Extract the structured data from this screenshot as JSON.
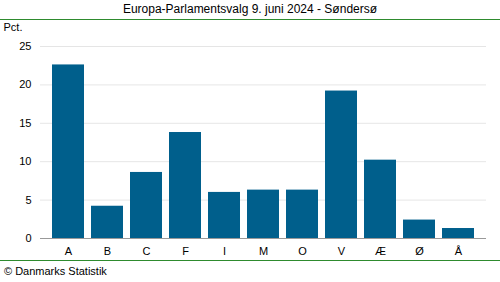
{
  "chart_data": {
    "type": "bar",
    "title": "Europa-Parlamentsvalg 9. juni 2024 - Søndersø",
    "y_label": "Pct.",
    "caption": "© Danmarks Statistik",
    "categories": [
      "A",
      "B",
      "C",
      "F",
      "I",
      "M",
      "O",
      "V",
      "Æ",
      "Ø",
      "Å"
    ],
    "values": [
      22.6,
      4.2,
      8.6,
      13.8,
      6.0,
      6.3,
      6.3,
      19.2,
      10.2,
      2.4,
      1.3
    ],
    "color": "#005f8c",
    "ylim": [
      0,
      25
    ],
    "yticks": [
      0,
      5,
      10,
      15,
      20,
      25
    ],
    "grid": true
  }
}
